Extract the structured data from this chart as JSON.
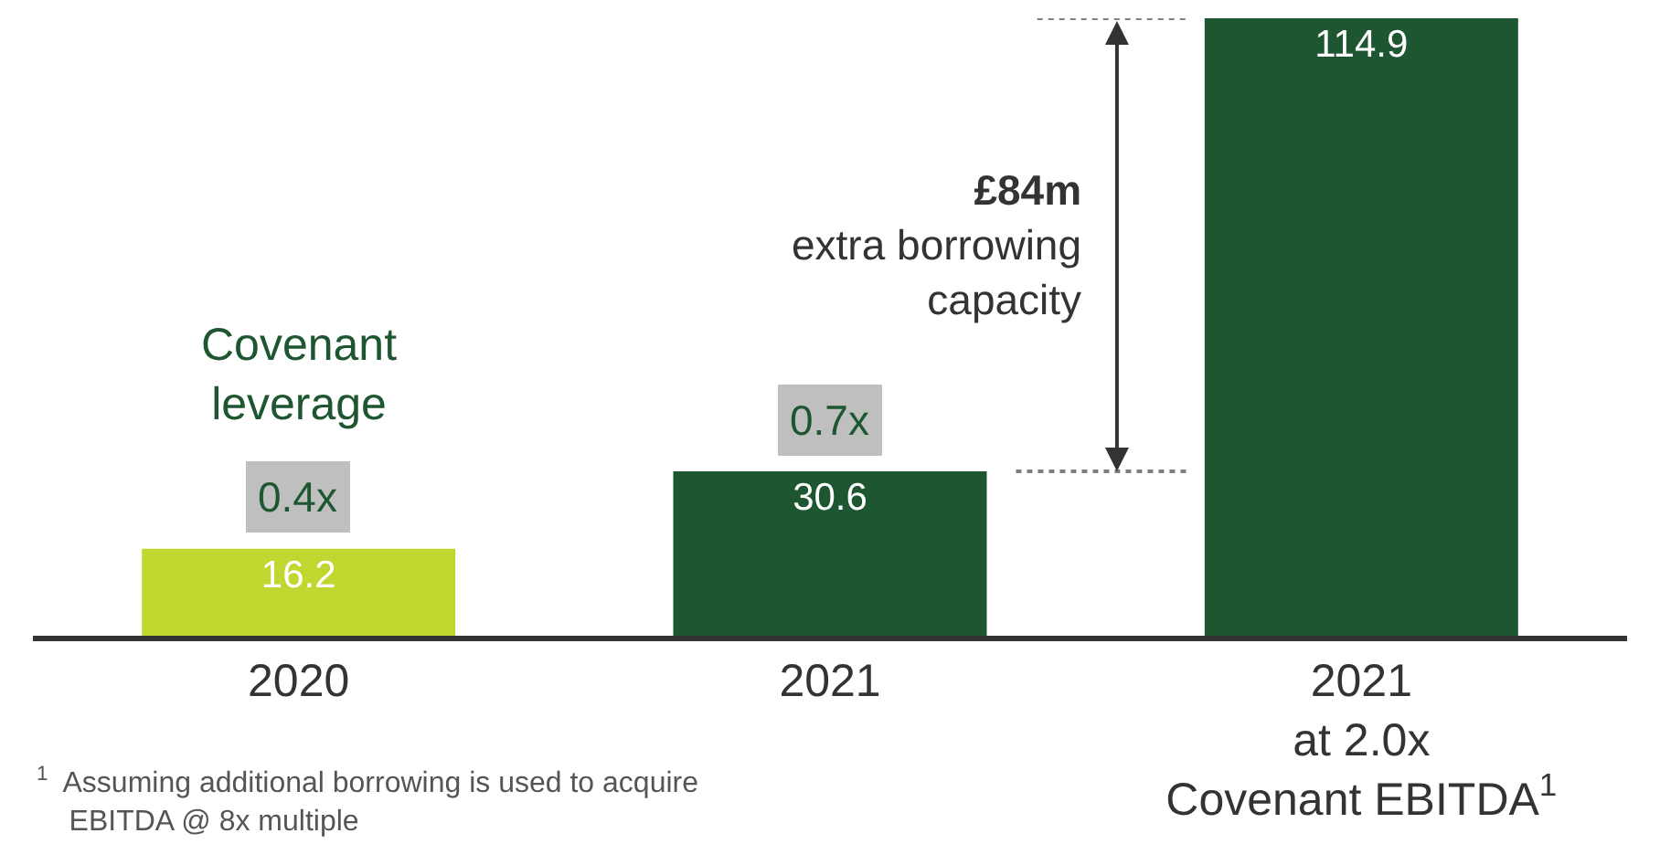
{
  "chart_data": {
    "type": "bar",
    "categories": [
      "2020",
      "2021",
      "2021\nat 2.0x\nCovenant EBITDA$^{1}$"
    ],
    "values": [
      16.2,
      30.6,
      114.9
    ],
    "colors": [
      "#c0d72f",
      "#1e5631",
      "#1e5631"
    ],
    "data_labels": true,
    "annotations": [
      {
        "text": "Covenant\nleverage"
      },
      {
        "text": "0.4x",
        "x": "2020",
        "y": 16.2
      },
      {
        "text": "0.7x",
        "x": "2021",
        "y": 30.6
      },
      {
        "text": "£84m\nextra borrowing\ncapacity"
      },
      {
        "text": "$^{1}$  Assuming additional borrowing is used to acquire\n    EBITDA @ 8x multiple"
      }
    ],
    "ref_lines": [
      {
        "axis": "y",
        "value": 30.6,
        "color": "#7f7f7f",
        "line_style": "dotted"
      },
      {
        "axis": "y",
        "value": 114.9,
        "color": "#7f7f7f",
        "line_style": "dotted"
      }
    ],
    "legend": false
  }
}
